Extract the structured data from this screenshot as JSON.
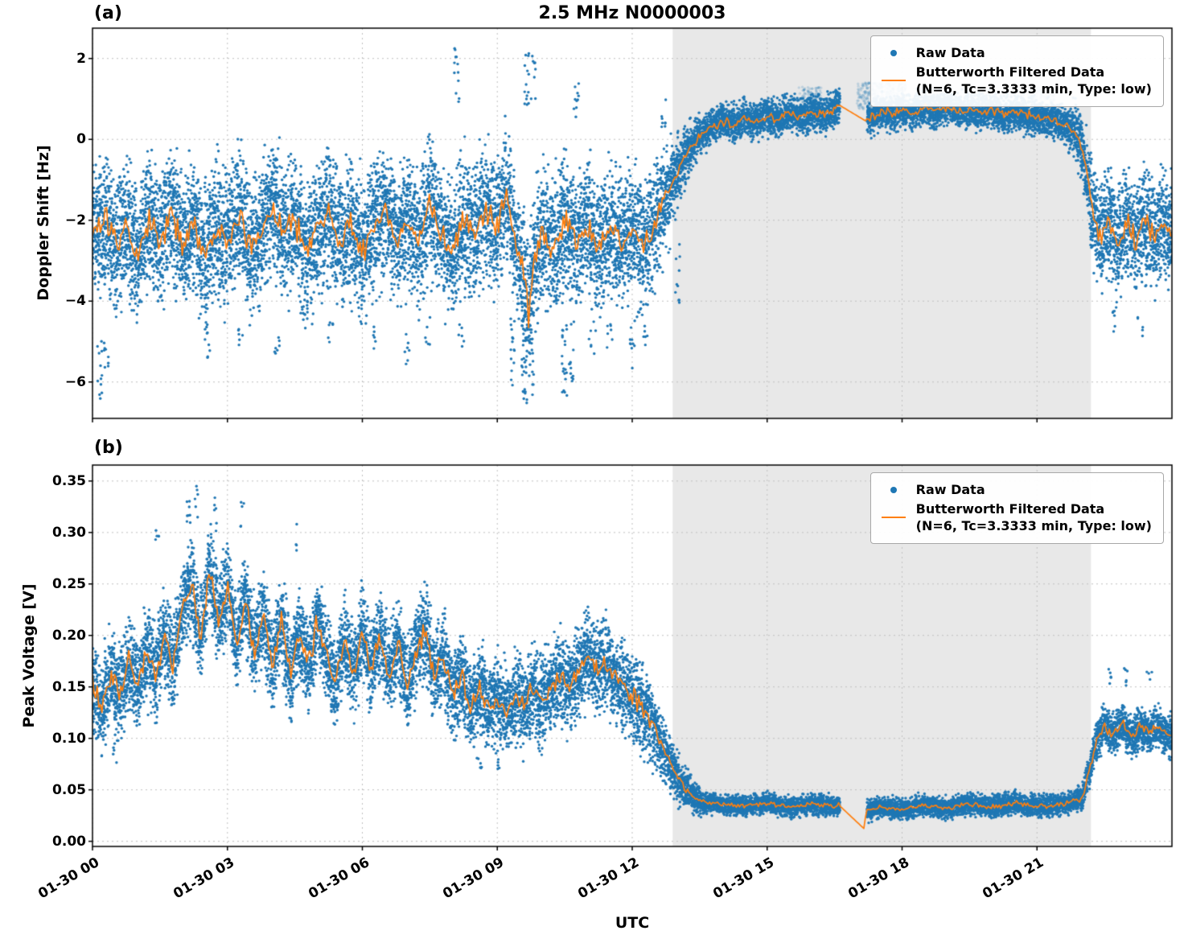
{
  "xlabel": "UTC",
  "colors": {
    "raw": "#1f77b4",
    "filtered": "#ff7f0e",
    "shade": "#e8e8e8",
    "grid": "#c0c0c0",
    "spine": "#000000",
    "soft_raw": "31,119,180"
  },
  "chart_data": [
    {
      "id": "doppler-shift-panel",
      "type": "scatter",
      "panel_label": "(a)",
      "title": "2.5 MHz N0000003",
      "ylabel": "Doppler Shift [Hz]",
      "ylim": [
        -6.9,
        2.75
      ],
      "yticks": [
        2,
        0,
        -2,
        -4,
        -6
      ],
      "ytick_labels": [
        "2",
        "0",
        "−2",
        "−4",
        "−6"
      ],
      "xlim_hours": [
        0,
        24
      ],
      "xticks_hours": [
        0,
        3,
        6,
        9,
        12,
        15,
        18,
        21
      ],
      "xtick_labels": [
        "01-30 00",
        "01-30 03",
        "01-30 06",
        "01-30 09",
        "01-30 12",
        "01-30 15",
        "01-30 18",
        "01-30 21"
      ],
      "show_xtick_labels": false,
      "grid": true,
      "shaded_region_hours": [
        12.9,
        22.2
      ],
      "data_gaps_hours": [
        [
          16.6,
          17.2
        ]
      ],
      "legend": {
        "raw": "Raw Data",
        "filtered_line1": "Butterworth Filtered Data",
        "filtered_line2": "(N=6, Tc=3.3333 min, Type: low)"
      },
      "filtered_series": [
        [
          0,
          -2.3
        ],
        [
          0.25,
          -1.9
        ],
        [
          0.5,
          -2.7
        ],
        [
          0.75,
          -2.2
        ],
        [
          1,
          -2.9
        ],
        [
          1.25,
          -2
        ],
        [
          1.5,
          -2.5
        ],
        [
          1.75,
          -1.7
        ],
        [
          2,
          -2.6
        ],
        [
          2.25,
          -2.2
        ],
        [
          2.5,
          -2.9
        ],
        [
          2.75,
          -2.1
        ],
        [
          3,
          -2.5
        ],
        [
          3.25,
          -1.8
        ],
        [
          3.5,
          -2.7
        ],
        [
          3.75,
          -2.3
        ],
        [
          4,
          -1.6
        ],
        [
          4.25,
          -2.4
        ],
        [
          4.5,
          -2
        ],
        [
          4.75,
          -2.8
        ],
        [
          5,
          -2.3
        ],
        [
          5.25,
          -1.8
        ],
        [
          5.5,
          -2.6
        ],
        [
          5.75,
          -2.1
        ],
        [
          6,
          -2.8
        ],
        [
          6.25,
          -2.2
        ],
        [
          6.5,
          -1.7
        ],
        [
          6.75,
          -2.5
        ],
        [
          7,
          -2
        ],
        [
          7.25,
          -2.6
        ],
        [
          7.5,
          -1.5
        ],
        [
          7.75,
          -2.3
        ],
        [
          8,
          -2.8
        ],
        [
          8.25,
          -2
        ],
        [
          8.5,
          -2.4
        ],
        [
          8.75,
          -1.8
        ],
        [
          9,
          -2.2
        ],
        [
          9.2,
          -1.3
        ],
        [
          9.4,
          -2.5
        ],
        [
          9.6,
          -3.4
        ],
        [
          9.7,
          -4.3
        ],
        [
          9.8,
          -3
        ],
        [
          10,
          -2.3
        ],
        [
          10.25,
          -2.7
        ],
        [
          10.5,
          -2
        ],
        [
          10.75,
          -2.5
        ],
        [
          11,
          -2.1
        ],
        [
          11.25,
          -2.7
        ],
        [
          11.5,
          -2.2
        ],
        [
          11.75,
          -2.6
        ],
        [
          12,
          -2.3
        ],
        [
          12.25,
          -2.6
        ],
        [
          12.5,
          -2.1
        ],
        [
          12.7,
          -1.6
        ],
        [
          12.9,
          -1.1
        ],
        [
          13.1,
          -0.6
        ],
        [
          13.3,
          -0.2
        ],
        [
          13.5,
          0.1
        ],
        [
          13.75,
          0.3
        ],
        [
          14,
          0.45
        ],
        [
          14.25,
          0.35
        ],
        [
          14.5,
          0.55
        ],
        [
          14.75,
          0.45
        ],
        [
          15,
          0.6
        ],
        [
          15.25,
          0.5
        ],
        [
          15.5,
          0.65
        ],
        [
          15.75,
          0.55
        ],
        [
          16,
          0.7
        ],
        [
          16.25,
          0.6
        ],
        [
          16.6,
          0.85
        ],
        [
          17.2,
          0.45
        ],
        [
          17.4,
          0.6
        ],
        [
          17.6,
          0.7
        ],
        [
          17.8,
          0.6
        ],
        [
          18,
          0.75
        ],
        [
          18.25,
          0.65
        ],
        [
          18.5,
          0.8
        ],
        [
          18.75,
          0.7
        ],
        [
          19,
          0.8
        ],
        [
          19.25,
          0.7
        ],
        [
          19.5,
          0.75
        ],
        [
          19.75,
          0.65
        ],
        [
          20,
          0.75
        ],
        [
          20.25,
          0.6
        ],
        [
          20.5,
          0.7
        ],
        [
          20.75,
          0.6
        ],
        [
          21,
          0.55
        ],
        [
          21.25,
          0.5
        ],
        [
          21.5,
          0.45
        ],
        [
          21.75,
          0.3
        ],
        [
          21.95,
          0
        ],
        [
          22.1,
          -0.8
        ],
        [
          22.25,
          -1.8
        ],
        [
          22.4,
          -2.4
        ],
        [
          22.6,
          -2
        ],
        [
          22.8,
          -2.6
        ],
        [
          23,
          -2.1
        ],
        [
          23.2,
          -2.5
        ],
        [
          23.4,
          -2
        ],
        [
          23.6,
          -2.4
        ],
        [
          23.8,
          -2.1
        ],
        [
          24,
          -2.3
        ]
      ],
      "scatter_spread": [
        [
          0,
          1.1
        ],
        [
          12.4,
          1.1
        ],
        [
          13.2,
          0.45
        ],
        [
          13.6,
          0.3
        ],
        [
          16.6,
          0.3
        ],
        [
          17.2,
          0.28
        ],
        [
          21.6,
          0.3
        ],
        [
          22,
          0.55
        ],
        [
          22.25,
          0.85
        ],
        [
          24,
          0.9
        ]
      ],
      "line_jitter": [
        [
          0,
          0.38
        ],
        [
          12.5,
          0.38
        ],
        [
          13.3,
          0.12
        ],
        [
          21.9,
          0.12
        ],
        [
          22.3,
          0.28
        ],
        [
          24,
          0.28
        ]
      ],
      "scatter_clip": [
        -6.65,
        2.3
      ],
      "points_per_bin": 13,
      "bin_hours": 0.02,
      "point_radius": 1.7,
      "outlier_clusters": [
        [
          0.15,
          -6.45,
          -4.6,
          12
        ],
        [
          0.3,
          -5.7,
          -4.6,
          8
        ],
        [
          2.55,
          -5.4,
          -4.5,
          8
        ],
        [
          3.3,
          -5.1,
          -4.4,
          6
        ],
        [
          4.1,
          -5.3,
          -4.4,
          7
        ],
        [
          5.3,
          -5.2,
          -4.5,
          6
        ],
        [
          6.3,
          -5.3,
          -4.4,
          6
        ],
        [
          7,
          -5.6,
          -4.5,
          7
        ],
        [
          7.45,
          -5.2,
          -4.4,
          6
        ],
        [
          8.1,
          0.9,
          2.25,
          12
        ],
        [
          8.2,
          -5.4,
          -4.5,
          6
        ],
        [
          9.35,
          -6.2,
          -4.4,
          16
        ],
        [
          9.6,
          -6.6,
          -4.3,
          26
        ],
        [
          9.75,
          -6.4,
          -4.3,
          18
        ],
        [
          9.65,
          0.8,
          2.2,
          14
        ],
        [
          9.8,
          1,
          2.1,
          8
        ],
        [
          10.5,
          -6.5,
          -4.4,
          20
        ],
        [
          10.65,
          -6,
          -4.4,
          12
        ],
        [
          10.75,
          0.5,
          1.45,
          10
        ],
        [
          11.1,
          -5.3,
          -4.4,
          6
        ],
        [
          11.5,
          -5.5,
          -4.5,
          7
        ],
        [
          12,
          -5.7,
          -4.4,
          10
        ],
        [
          12.3,
          -5.1,
          -4.3,
          6
        ],
        [
          12.7,
          0.2,
          1.2,
          8
        ],
        [
          13,
          -4.2,
          -2.2,
          10
        ],
        [
          22.7,
          -5,
          -4.2,
          6
        ],
        [
          23.3,
          -4.9,
          -4.2,
          5
        ]
      ],
      "soft_clusters": [
        [
          15.7,
          16.2,
          0.9,
          1.3,
          70,
          0.2
        ],
        [
          17,
          18.1,
          0.75,
          1.4,
          350,
          0.2
        ],
        [
          20.8,
          21.4,
          0.8,
          1.3,
          120,
          0.2
        ]
      ]
    },
    {
      "id": "peak-voltage-panel",
      "type": "scatter",
      "panel_label": "(b)",
      "title": "",
      "ylabel": "Peak Voltage [V]",
      "ylim": [
        -0.005,
        0.3655
      ],
      "yticks": [
        0,
        0.05,
        0.1,
        0.15,
        0.2,
        0.25,
        0.3,
        0.35
      ],
      "ytick_labels": [
        "0.00",
        "0.05",
        "0.10",
        "0.15",
        "0.20",
        "0.25",
        "0.30",
        "0.35"
      ],
      "xlim_hours": [
        0,
        24
      ],
      "xticks_hours": [
        0,
        3,
        6,
        9,
        12,
        15,
        18,
        21
      ],
      "xtick_labels": [
        "01-30 00",
        "01-30 03",
        "01-30 06",
        "01-30 09",
        "01-30 12",
        "01-30 15",
        "01-30 18",
        "01-30 21"
      ],
      "show_xtick_labels": true,
      "grid": true,
      "shaded_region_hours": [
        12.9,
        22.2
      ],
      "data_gaps_hours": [
        [
          16.6,
          17.2
        ]
      ],
      "legend": {
        "raw": "Raw Data",
        "filtered_line1": "Butterworth Filtered Data",
        "filtered_line2": "(N=6, Tc=3.3333 min, Type: low)"
      },
      "filtered_series": [
        [
          0,
          0.15
        ],
        [
          0.2,
          0.128
        ],
        [
          0.4,
          0.16
        ],
        [
          0.6,
          0.14
        ],
        [
          0.8,
          0.172
        ],
        [
          1,
          0.15
        ],
        [
          1.2,
          0.185
        ],
        [
          1.4,
          0.16
        ],
        [
          1.6,
          0.2
        ],
        [
          1.8,
          0.17
        ],
        [
          2,
          0.225
        ],
        [
          2.2,
          0.25
        ],
        [
          2.4,
          0.195
        ],
        [
          2.6,
          0.265
        ],
        [
          2.8,
          0.215
        ],
        [
          3,
          0.25
        ],
        [
          3.2,
          0.19
        ],
        [
          3.4,
          0.235
        ],
        [
          3.6,
          0.18
        ],
        [
          3.8,
          0.22
        ],
        [
          4,
          0.17
        ],
        [
          4.2,
          0.215
        ],
        [
          4.4,
          0.16
        ],
        [
          4.6,
          0.205
        ],
        [
          4.8,
          0.17
        ],
        [
          5,
          0.215
        ],
        [
          5.2,
          0.18
        ],
        [
          5.4,
          0.15
        ],
        [
          5.6,
          0.195
        ],
        [
          5.8,
          0.16
        ],
        [
          6,
          0.205
        ],
        [
          6.2,
          0.17
        ],
        [
          6.4,
          0.2
        ],
        [
          6.6,
          0.16
        ],
        [
          6.8,
          0.19
        ],
        [
          7,
          0.15
        ],
        [
          7.2,
          0.185
        ],
        [
          7.4,
          0.205
        ],
        [
          7.6,
          0.16
        ],
        [
          7.8,
          0.18
        ],
        [
          8,
          0.14
        ],
        [
          8.2,
          0.16
        ],
        [
          8.4,
          0.13
        ],
        [
          8.6,
          0.15
        ],
        [
          8.8,
          0.128
        ],
        [
          9,
          0.14
        ],
        [
          9.2,
          0.122
        ],
        [
          9.4,
          0.14
        ],
        [
          9.6,
          0.13
        ],
        [
          9.8,
          0.148
        ],
        [
          10,
          0.138
        ],
        [
          10.2,
          0.15
        ],
        [
          10.4,
          0.158
        ],
        [
          10.6,
          0.148
        ],
        [
          10.8,
          0.165
        ],
        [
          11,
          0.178
        ],
        [
          11.2,
          0.168
        ],
        [
          11.4,
          0.175
        ],
        [
          11.6,
          0.16
        ],
        [
          11.8,
          0.15
        ],
        [
          12,
          0.14
        ],
        [
          12.2,
          0.13
        ],
        [
          12.4,
          0.118
        ],
        [
          12.6,
          0.1
        ],
        [
          12.8,
          0.08
        ],
        [
          13,
          0.062
        ],
        [
          13.2,
          0.05
        ],
        [
          13.4,
          0.042
        ],
        [
          13.6,
          0.038
        ],
        [
          14,
          0.036
        ],
        [
          14.5,
          0.034
        ],
        [
          15,
          0.037
        ],
        [
          15.5,
          0.033
        ],
        [
          16,
          0.036
        ],
        [
          16.5,
          0.034
        ],
        [
          16.6,
          0.035
        ],
        [
          17.16,
          0.012
        ],
        [
          17.2,
          0.03
        ],
        [
          17.5,
          0.033
        ],
        [
          18,
          0.031
        ],
        [
          18.5,
          0.035
        ],
        [
          19,
          0.032
        ],
        [
          19.5,
          0.036
        ],
        [
          20,
          0.033
        ],
        [
          20.5,
          0.037
        ],
        [
          21,
          0.034
        ],
        [
          21.5,
          0.035
        ],
        [
          22,
          0.042
        ],
        [
          22.2,
          0.075
        ],
        [
          22.35,
          0.1
        ],
        [
          22.5,
          0.112
        ],
        [
          22.7,
          0.103
        ],
        [
          22.9,
          0.115
        ],
        [
          23.1,
          0.1
        ],
        [
          23.3,
          0.112
        ],
        [
          23.5,
          0.104
        ],
        [
          23.7,
          0.112
        ],
        [
          24,
          0.1
        ]
      ],
      "scatter_spread": [
        [
          0,
          0.03
        ],
        [
          12.2,
          0.028
        ],
        [
          13.2,
          0.012
        ],
        [
          13.7,
          0.0065
        ],
        [
          21.8,
          0.007
        ],
        [
          22.1,
          0.01
        ],
        [
          22.4,
          0.013
        ],
        [
          24,
          0.013
        ]
      ],
      "line_jitter": [
        [
          0,
          0.012
        ],
        [
          12.4,
          0.011
        ],
        [
          13.4,
          0.0025
        ],
        [
          21.9,
          0.0025
        ],
        [
          22.3,
          0.005
        ],
        [
          24,
          0.005
        ]
      ],
      "scatter_clip": [
        0.004,
        0.35
      ],
      "points_per_bin": 13,
      "bin_hours": 0.02,
      "point_radius": 1.7,
      "outlier_clusters": [
        [
          1.45,
          0.28,
          0.305,
          5
        ],
        [
          2.15,
          0.3,
          0.335,
          8
        ],
        [
          2.3,
          0.305,
          0.345,
          6
        ],
        [
          2.7,
          0.3,
          0.34,
          6
        ],
        [
          3.35,
          0.305,
          0.345,
          5
        ],
        [
          4.5,
          0.28,
          0.31,
          4
        ],
        [
          0.5,
          0.075,
          0.095,
          5
        ],
        [
          8.6,
          0.068,
          0.09,
          6
        ],
        [
          9,
          0.065,
          0.085,
          5
        ],
        [
          22.6,
          0.15,
          0.168,
          5
        ],
        [
          23,
          0.15,
          0.17,
          6
        ],
        [
          23.5,
          0.148,
          0.165,
          4
        ]
      ],
      "soft_clusters": []
    }
  ]
}
